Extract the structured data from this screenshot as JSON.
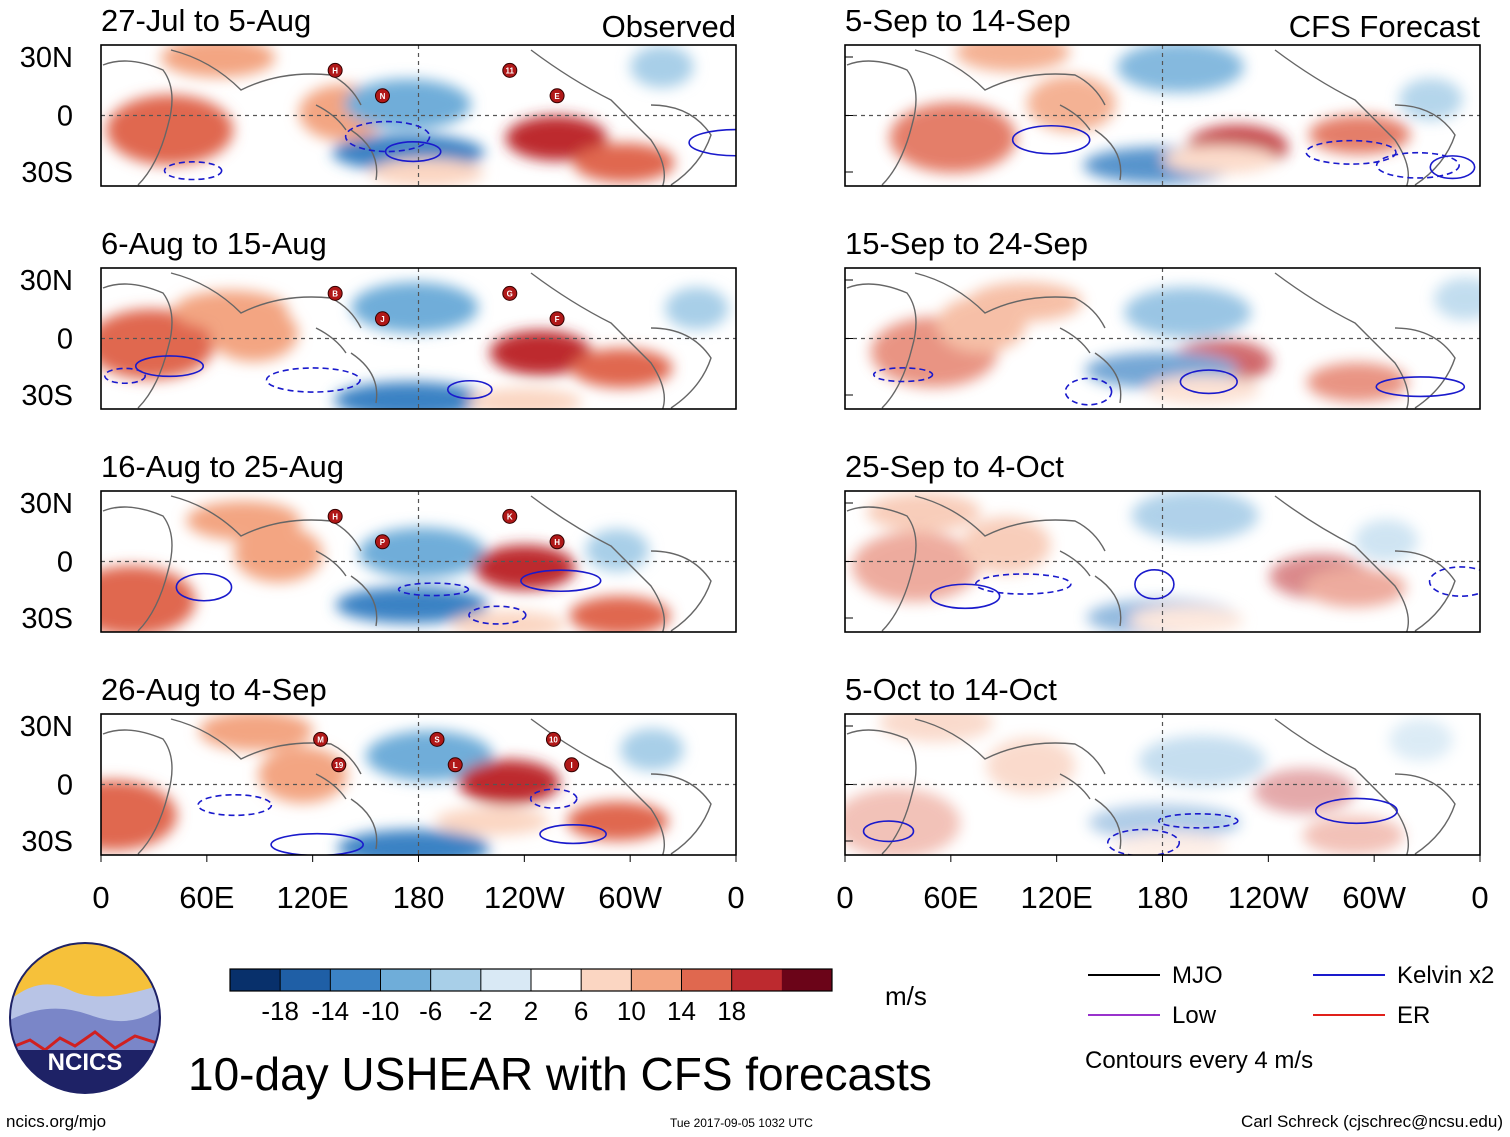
{
  "chart_data": {
    "type": "heatmap",
    "title": "10-day USHEAR with CFS forecasts",
    "units": "m/s",
    "column_headers": [
      "Observed",
      "CFS Forecast"
    ],
    "panels": [
      {
        "period": "27-Jul to 5-Aug",
        "kind": "Observed",
        "storms": [
          "H",
          "N",
          "11",
          "E"
        ]
      },
      {
        "period": "6-Aug to 15-Aug",
        "kind": "Observed",
        "storms": [
          "B",
          "J",
          "G",
          "F"
        ]
      },
      {
        "period": "16-Aug to 25-Aug",
        "kind": "Observed",
        "storms": [
          "H",
          "P",
          "K",
          "H"
        ]
      },
      {
        "period": "26-Aug to 4-Sep",
        "kind": "Observed",
        "storms": [
          "M",
          "19",
          "S",
          "L",
          "10",
          "I"
        ]
      },
      {
        "period": "5-Sep to 14-Sep",
        "kind": "CFS Forecast",
        "storms": []
      },
      {
        "period": "15-Sep to 24-Sep",
        "kind": "CFS Forecast",
        "storms": []
      },
      {
        "period": "25-Sep to 4-Oct",
        "kind": "CFS Forecast",
        "storms": []
      },
      {
        "period": "5-Oct to 14-Oct",
        "kind": "CFS Forecast",
        "storms": []
      }
    ],
    "x_ticks": [
      "0",
      "60E",
      "120E",
      "180",
      "120W",
      "60W",
      "0"
    ],
    "y_ticks": [
      "30N",
      "0",
      "30S"
    ],
    "colorbar": {
      "labels": [
        "-18",
        "-14",
        "-10",
        "-6",
        "-2",
        "2",
        "6",
        "10",
        "14",
        "18"
      ],
      "colors": [
        "#08306b",
        "#1f5fa6",
        "#3b82c4",
        "#6fadd9",
        "#a8cfe8",
        "#d9e9f5",
        "#ffffff",
        "#fbd6c2",
        "#f3a582",
        "#e0684f",
        "#bd2a2f",
        "#6b0418"
      ]
    },
    "legend": {
      "items": [
        {
          "label": "MJO",
          "color": "#000000"
        },
        {
          "label": "Kelvin x2",
          "color": "#1a1acc"
        },
        {
          "label": "Low",
          "color": "#9933cc"
        },
        {
          "label": "ER",
          "color": "#e0201a"
        }
      ],
      "note": "Contours every 4 m/s"
    }
  },
  "footer": {
    "url": "ncics.org/mjo",
    "timestamp": "Tue 2017-09-05 1032 UTC",
    "credit": "Carl Schreck (cjschrec@ncsu.edu)",
    "logo_text": "NCICS"
  }
}
